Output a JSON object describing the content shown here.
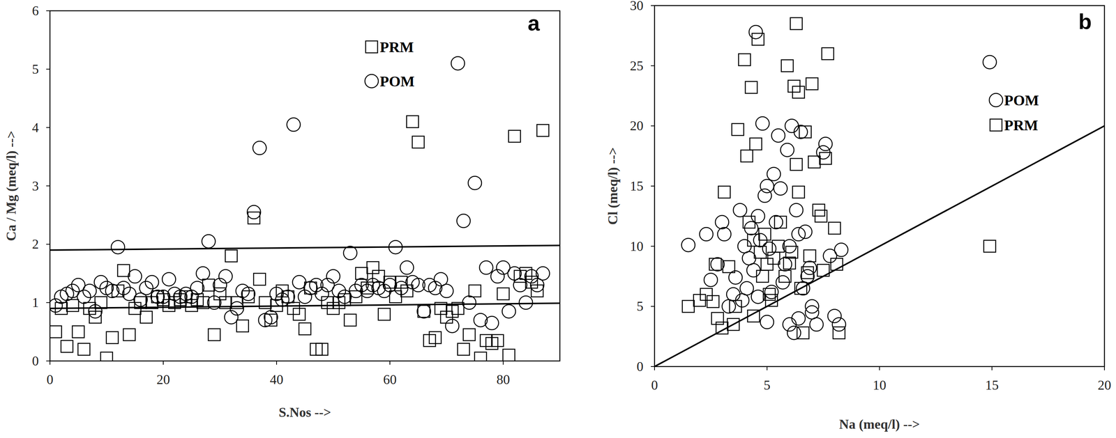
{
  "chart_data": [
    {
      "type": "scatter",
      "title": "a",
      "x_label": "S.Nos -->",
      "y_label": "Ca / Mg (meq/l) -->",
      "xlim": [
        0,
        90
      ],
      "ylim": [
        0,
        6
      ],
      "xticks": [
        0,
        20,
        40,
        60,
        80
      ],
      "yticks": [
        0,
        1,
        2,
        3,
        4,
        5,
        6
      ],
      "legend": "top-right",
      "grid": false,
      "series": [
        {
          "name": "PRM",
          "marker": "square",
          "color": "#000000",
          "x": [
            1,
            2,
            3,
            4,
            5,
            6,
            7,
            8,
            9,
            10,
            11,
            12,
            13,
            14,
            15,
            16,
            17,
            18,
            19,
            20,
            21,
            22,
            23,
            24,
            25,
            26,
            27,
            28,
            29,
            30,
            31,
            32,
            33,
            34,
            35,
            36,
            37,
            38,
            39,
            40,
            41,
            42,
            43,
            44,
            45,
            46,
            47,
            48,
            49,
            50,
            51,
            52,
            53,
            54,
            55,
            56,
            57,
            58,
            59,
            60,
            61,
            62,
            63,
            64,
            65,
            66,
            67,
            68,
            69,
            70,
            71,
            72,
            73,
            74,
            75,
            76,
            77,
            78,
            79,
            80,
            81,
            82,
            83,
            84,
            85,
            86,
            87
          ],
          "values": [
            0.5,
            0.9,
            0.25,
            0.95,
            0.5,
            0.2,
            0.9,
            0.75,
            1,
            0.05,
            0.4,
            1.2,
            1.55,
            0.45,
            0.9,
            1,
            0.75,
            1,
            1.1,
            1.05,
            0.95,
            1,
            1.05,
            1.1,
            0.95,
            1.05,
            1,
            1.3,
            0.45,
            1.15,
            1,
            1.8,
            1,
            0.6,
            1.1,
            2.45,
            1.4,
            1,
            0.7,
            0.95,
            1.2,
            1.1,
            0.9,
            0.8,
            0.55,
            1.25,
            0.2,
            0.2,
            1,
            0.9,
            1,
            1.05,
            0.7,
            1.1,
            1.5,
            1.25,
            1.6,
            1.45,
            0.8,
            1.35,
            1.1,
            1.35,
            1.2,
            4.1,
            3.75,
            0.85,
            0.35,
            0.4,
            0.9,
            0.75,
            0.85,
            0.9,
            0.2,
            0.45,
            1.2,
            0.05,
            0.35,
            0.3,
            0.35,
            1.15,
            0.1,
            3.85,
            1.45,
            1.5,
            1.35,
            1.2,
            3.95
          ]
        },
        {
          "name": "POM",
          "marker": "circle",
          "color": "#000000",
          "x": [
            1,
            2,
            3,
            4,
            5,
            6,
            7,
            8,
            9,
            10,
            11,
            12,
            13,
            14,
            15,
            16,
            17,
            18,
            19,
            20,
            21,
            22,
            23,
            24,
            25,
            26,
            27,
            28,
            29,
            30,
            31,
            32,
            33,
            34,
            35,
            36,
            37,
            38,
            39,
            40,
            41,
            42,
            43,
            44,
            45,
            46,
            47,
            48,
            49,
            50,
            51,
            52,
            53,
            54,
            55,
            56,
            57,
            58,
            59,
            60,
            61,
            62,
            63,
            64,
            65,
            66,
            67,
            68,
            69,
            70,
            71,
            72,
            73,
            74,
            75,
            76,
            77,
            78,
            79,
            80,
            81,
            82,
            83,
            84,
            85,
            86,
            87
          ],
          "values": [
            0.95,
            1.1,
            1.15,
            1.2,
            1.3,
            1.1,
            1.2,
            0.85,
            1.35,
            1.25,
            1.2,
            1.95,
            1.25,
            1.15,
            1.45,
            1.05,
            1.25,
            1.35,
            1.1,
            1.1,
            1.4,
            1.15,
            1.1,
            1.15,
            1.1,
            1.25,
            1.5,
            2.05,
            1,
            1.3,
            1.45,
            0.75,
            0.9,
            1.2,
            1.15,
            2.55,
            3.65,
            0.7,
            0.75,
            1.15,
            1.05,
            1.1,
            4.05,
            1.35,
            1.1,
            1.25,
            1.3,
            1.15,
            1.3,
            1.45,
            1.2,
            1.1,
            1.85,
            1.2,
            1.3,
            1.2,
            1.3,
            1.25,
            1.2,
            1.3,
            1.95,
            1.25,
            1.6,
            1.35,
            1.3,
            0.85,
            1.3,
            1.25,
            1.4,
            1.2,
            0.6,
            5.1,
            2.4,
            1,
            3.05,
            0.7,
            1.6,
            0.65,
            1.45,
            1.6,
            0.85,
            1.5,
            1.3,
            1,
            1.45,
            1.3,
            1.5
          ]
        },
        {
          "type": "line",
          "line_style": "solid",
          "color": "#000000",
          "x": [
            0,
            90
          ],
          "values": [
            1.9,
            1.98
          ]
        },
        {
          "type": "line",
          "line_style": "solid",
          "color": "#000000",
          "x": [
            0,
            90
          ],
          "values": [
            0.9,
            0.99
          ]
        }
      ]
    },
    {
      "type": "scatter",
      "title": "b",
      "x_label": "Na (meq/l) -->",
      "y_label": "Cl (meq/l) -->",
      "xlim": [
        0,
        20
      ],
      "ylim": [
        0,
        30
      ],
      "xticks": [
        0,
        5,
        10,
        15,
        20
      ],
      "yticks": [
        0,
        5,
        10,
        15,
        20,
        25,
        30
      ],
      "legend": "top-right",
      "grid": false,
      "series": [
        {
          "name": "POM",
          "marker": "circle",
          "color": "#000000",
          "x": [
            1.5,
            2.3,
            2.5,
            2.8,
            3,
            3.1,
            3.3,
            3.5,
            3.6,
            3.8,
            4,
            4.1,
            4.2,
            4.3,
            4.4,
            4.5,
            4.6,
            4.7,
            4.8,
            4.9,
            5,
            5,
            5.1,
            5.3,
            5.4,
            5.5,
            5.6,
            5.8,
            5.9,
            6,
            6,
            6.1,
            6.2,
            6.3,
            6.4,
            6.5,
            6.6,
            6.7,
            6.8,
            7,
            7,
            7.2,
            7.5,
            7.6,
            7.8,
            8,
            8.2,
            8.3,
            14.9,
            5.2,
            3.9,
            4.6,
            5.7,
            6.4,
            6.9
          ],
          "values": [
            10.1,
            11,
            7.2,
            8.5,
            12,
            11,
            5,
            6,
            7.4,
            13,
            10,
            6.5,
            9,
            11.5,
            8,
            27.8,
            5.8,
            10.5,
            20.2,
            14.2,
            3.7,
            15,
            9.8,
            16,
            12,
            19.2,
            14.8,
            8.5,
            18,
            3.5,
            10,
            20,
            2.8,
            13,
            11,
            19.5,
            6.5,
            11.2,
            7.5,
            5,
            4.5,
            3.5,
            17.8,
            18.5,
            9.2,
            4.2,
            3.5,
            9.7,
            25.3,
            6.2,
            5.5,
            12.5,
            7,
            4,
            8.2
          ]
        },
        {
          "name": "PRM",
          "marker": "square",
          "color": "#000000",
          "x": [
            1.5,
            2,
            2.3,
            2.6,
            2.7,
            2.8,
            3,
            3.1,
            3.3,
            3.5,
            3.6,
            3.7,
            4,
            4.1,
            4.2,
            4.3,
            4.4,
            4.5,
            4.6,
            4.7,
            4.8,
            4.9,
            5,
            5.1,
            5.3,
            5.5,
            5.6,
            5.8,
            5.9,
            6,
            6.1,
            6.2,
            6.3,
            6.3,
            6.4,
            6.4,
            6.5,
            6.6,
            6.7,
            6.9,
            7,
            7.1,
            7.3,
            7.4,
            7.5,
            7.6,
            7.7,
            8,
            8.1,
            8.2,
            14.9,
            4.4,
            5.2,
            6.8
          ],
          "values": [
            5,
            5.5,
            6,
            5.4,
            8.5,
            4,
            3.2,
            14.5,
            8.3,
            3.5,
            5,
            19.7,
            25.5,
            17.5,
            12,
            23.2,
            10.5,
            18.5,
            27.2,
            9.5,
            7.5,
            11,
            8.5,
            6,
            9,
            10,
            12,
            7.5,
            25,
            8.6,
            9.5,
            23.3,
            28.5,
            16.8,
            14.5,
            22.8,
            6.5,
            2.8,
            19.5,
            9.2,
            23.5,
            17,
            13,
            12.5,
            8,
            17.3,
            26,
            11.5,
            8.5,
            2.8,
            10,
            4.2,
            5.5,
            7.8
          ]
        },
        {
          "type": "line",
          "line_style": "solid",
          "color": "#000000",
          "x": [
            0,
            20
          ],
          "values": [
            0,
            20
          ]
        }
      ]
    }
  ]
}
